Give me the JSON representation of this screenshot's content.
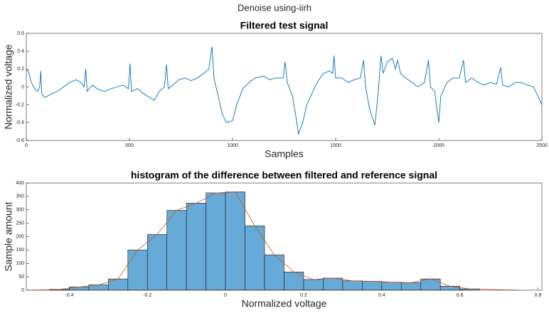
{
  "figure_title": "Denoise using-iirh",
  "chart_data": [
    {
      "type": "line",
      "title": "Filtered test signal",
      "xlabel": "Samples",
      "ylabel": "Normalized voltage",
      "color": "#0072bd",
      "x": [
        0,
        10,
        25,
        40,
        55,
        65,
        70,
        75,
        90,
        120,
        150,
        180,
        210,
        240,
        265,
        280,
        288,
        295,
        320,
        350,
        380,
        410,
        440,
        470,
        495,
        503,
        510,
        540,
        570,
        600,
        620,
        645,
        670,
        680,
        688,
        710,
        740,
        770,
        800,
        830,
        860,
        885,
        900,
        910,
        930,
        950,
        970,
        1000,
        1020,
        1050,
        1080,
        1110,
        1150,
        1180,
        1210,
        1245,
        1255,
        1265,
        1290,
        1305,
        1320,
        1340,
        1360,
        1390,
        1410,
        1440,
        1470,
        1485,
        1492,
        1500,
        1530,
        1560,
        1590,
        1620,
        1635,
        1645,
        1665,
        1690,
        1705,
        1720,
        1730,
        1750,
        1775,
        1790,
        1800,
        1815,
        1840,
        1870,
        1900,
        1930,
        1950,
        1960,
        1980,
        2000,
        2010,
        2040,
        2070,
        2100,
        2120,
        2130,
        2160,
        2190,
        2220,
        2250,
        2280,
        2300,
        2310,
        2340,
        2370,
        2400,
        2430,
        2460,
        2480,
        2500
      ],
      "values": [
        0.2,
        0.17,
        0.05,
        -0.02,
        -0.05,
        0.0,
        0.18,
        -0.08,
        -0.12,
        -0.08,
        -0.05,
        0.0,
        0.05,
        0.08,
        0.05,
        0.0,
        0.2,
        -0.05,
        0.02,
        -0.03,
        -0.05,
        -0.02,
        0.0,
        0.02,
        -0.02,
        0.26,
        -0.05,
        -0.02,
        -0.08,
        -0.12,
        -0.15,
        -0.05,
        0.0,
        0.25,
        -0.02,
        0.02,
        0.08,
        0.1,
        0.07,
        0.1,
        0.15,
        0.2,
        0.45,
        0.1,
        -0.1,
        -0.3,
        -0.4,
        -0.38,
        -0.2,
        -0.02,
        0.05,
        0.1,
        0.12,
        0.08,
        0.1,
        0.1,
        0.28,
        0.05,
        -0.1,
        -0.3,
        -0.53,
        -0.4,
        -0.2,
        -0.05,
        0.05,
        0.15,
        0.18,
        0.15,
        0.35,
        0.1,
        0.1,
        0.05,
        0.08,
        0.1,
        0.3,
        0.0,
        -0.25,
        -0.43,
        -0.1,
        0.35,
        0.15,
        0.28,
        0.32,
        0.2,
        0.3,
        0.15,
        0.1,
        0.05,
        0.0,
        0.05,
        0.3,
        0.0,
        -0.05,
        -0.4,
        -0.1,
        0.05,
        0.1,
        0.1,
        0.3,
        0.05,
        0.1,
        0.05,
        0.02,
        0.05,
        0.03,
        0.22,
        0.02,
        0.0,
        0.05,
        0.05,
        0.02,
        0.0,
        -0.1,
        -0.2
      ],
      "xlim": [
        0,
        2500
      ],
      "xticks": [
        0,
        500,
        1000,
        1500,
        2000,
        2500
      ],
      "ylim": [
        -0.6,
        0.6
      ],
      "yticks": [
        -0.6,
        -0.4,
        -0.2,
        0,
        0.2,
        0.4,
        0.6
      ]
    },
    {
      "type": "histogram",
      "title": "histogram of the difference between filtered and reference signal",
      "xlabel": "Normalized voltage",
      "ylabel": "Sample amount",
      "color": "#66aad7",
      "edgecolor": "#1a1a1a",
      "bins": [
        -0.45,
        -0.4,
        -0.35,
        -0.3,
        -0.25,
        -0.2,
        -0.15,
        -0.1,
        -0.05,
        0,
        0.05,
        0.1,
        0.15,
        0.2,
        0.25,
        0.3,
        0.35,
        0.4,
        0.45,
        0.5,
        0.55,
        0.6,
        0.65
      ],
      "values": [
        3,
        12,
        20,
        42,
        150,
        208,
        298,
        325,
        363,
        367,
        240,
        132,
        68,
        40,
        45,
        35,
        33,
        30,
        28,
        42,
        15,
        5
      ],
      "line": {
        "color": "#d95319",
        "x": [
          -0.5,
          -0.425,
          -0.375,
          -0.325,
          -0.275,
          -0.225,
          -0.175,
          -0.125,
          -0.075,
          -0.025,
          0.025,
          0.075,
          0.125,
          0.175,
          0.225,
          0.275,
          0.325,
          0.375,
          0.425,
          0.475,
          0.525,
          0.575,
          0.625,
          0.75
        ],
        "values": [
          0,
          3,
          12,
          20,
          42,
          150,
          208,
          298,
          325,
          363,
          367,
          240,
          132,
          68,
          40,
          45,
          35,
          33,
          30,
          28,
          42,
          15,
          5,
          0
        ]
      },
      "xlim": [
        -0.51,
        0.81
      ],
      "xticks": [
        -0.4,
        -0.2,
        0,
        0.2,
        0.4,
        0.6,
        0.8
      ],
      "ylim": [
        0,
        400
      ],
      "yticks": [
        0,
        50,
        100,
        150,
        200,
        250,
        300,
        350,
        400
      ]
    }
  ]
}
